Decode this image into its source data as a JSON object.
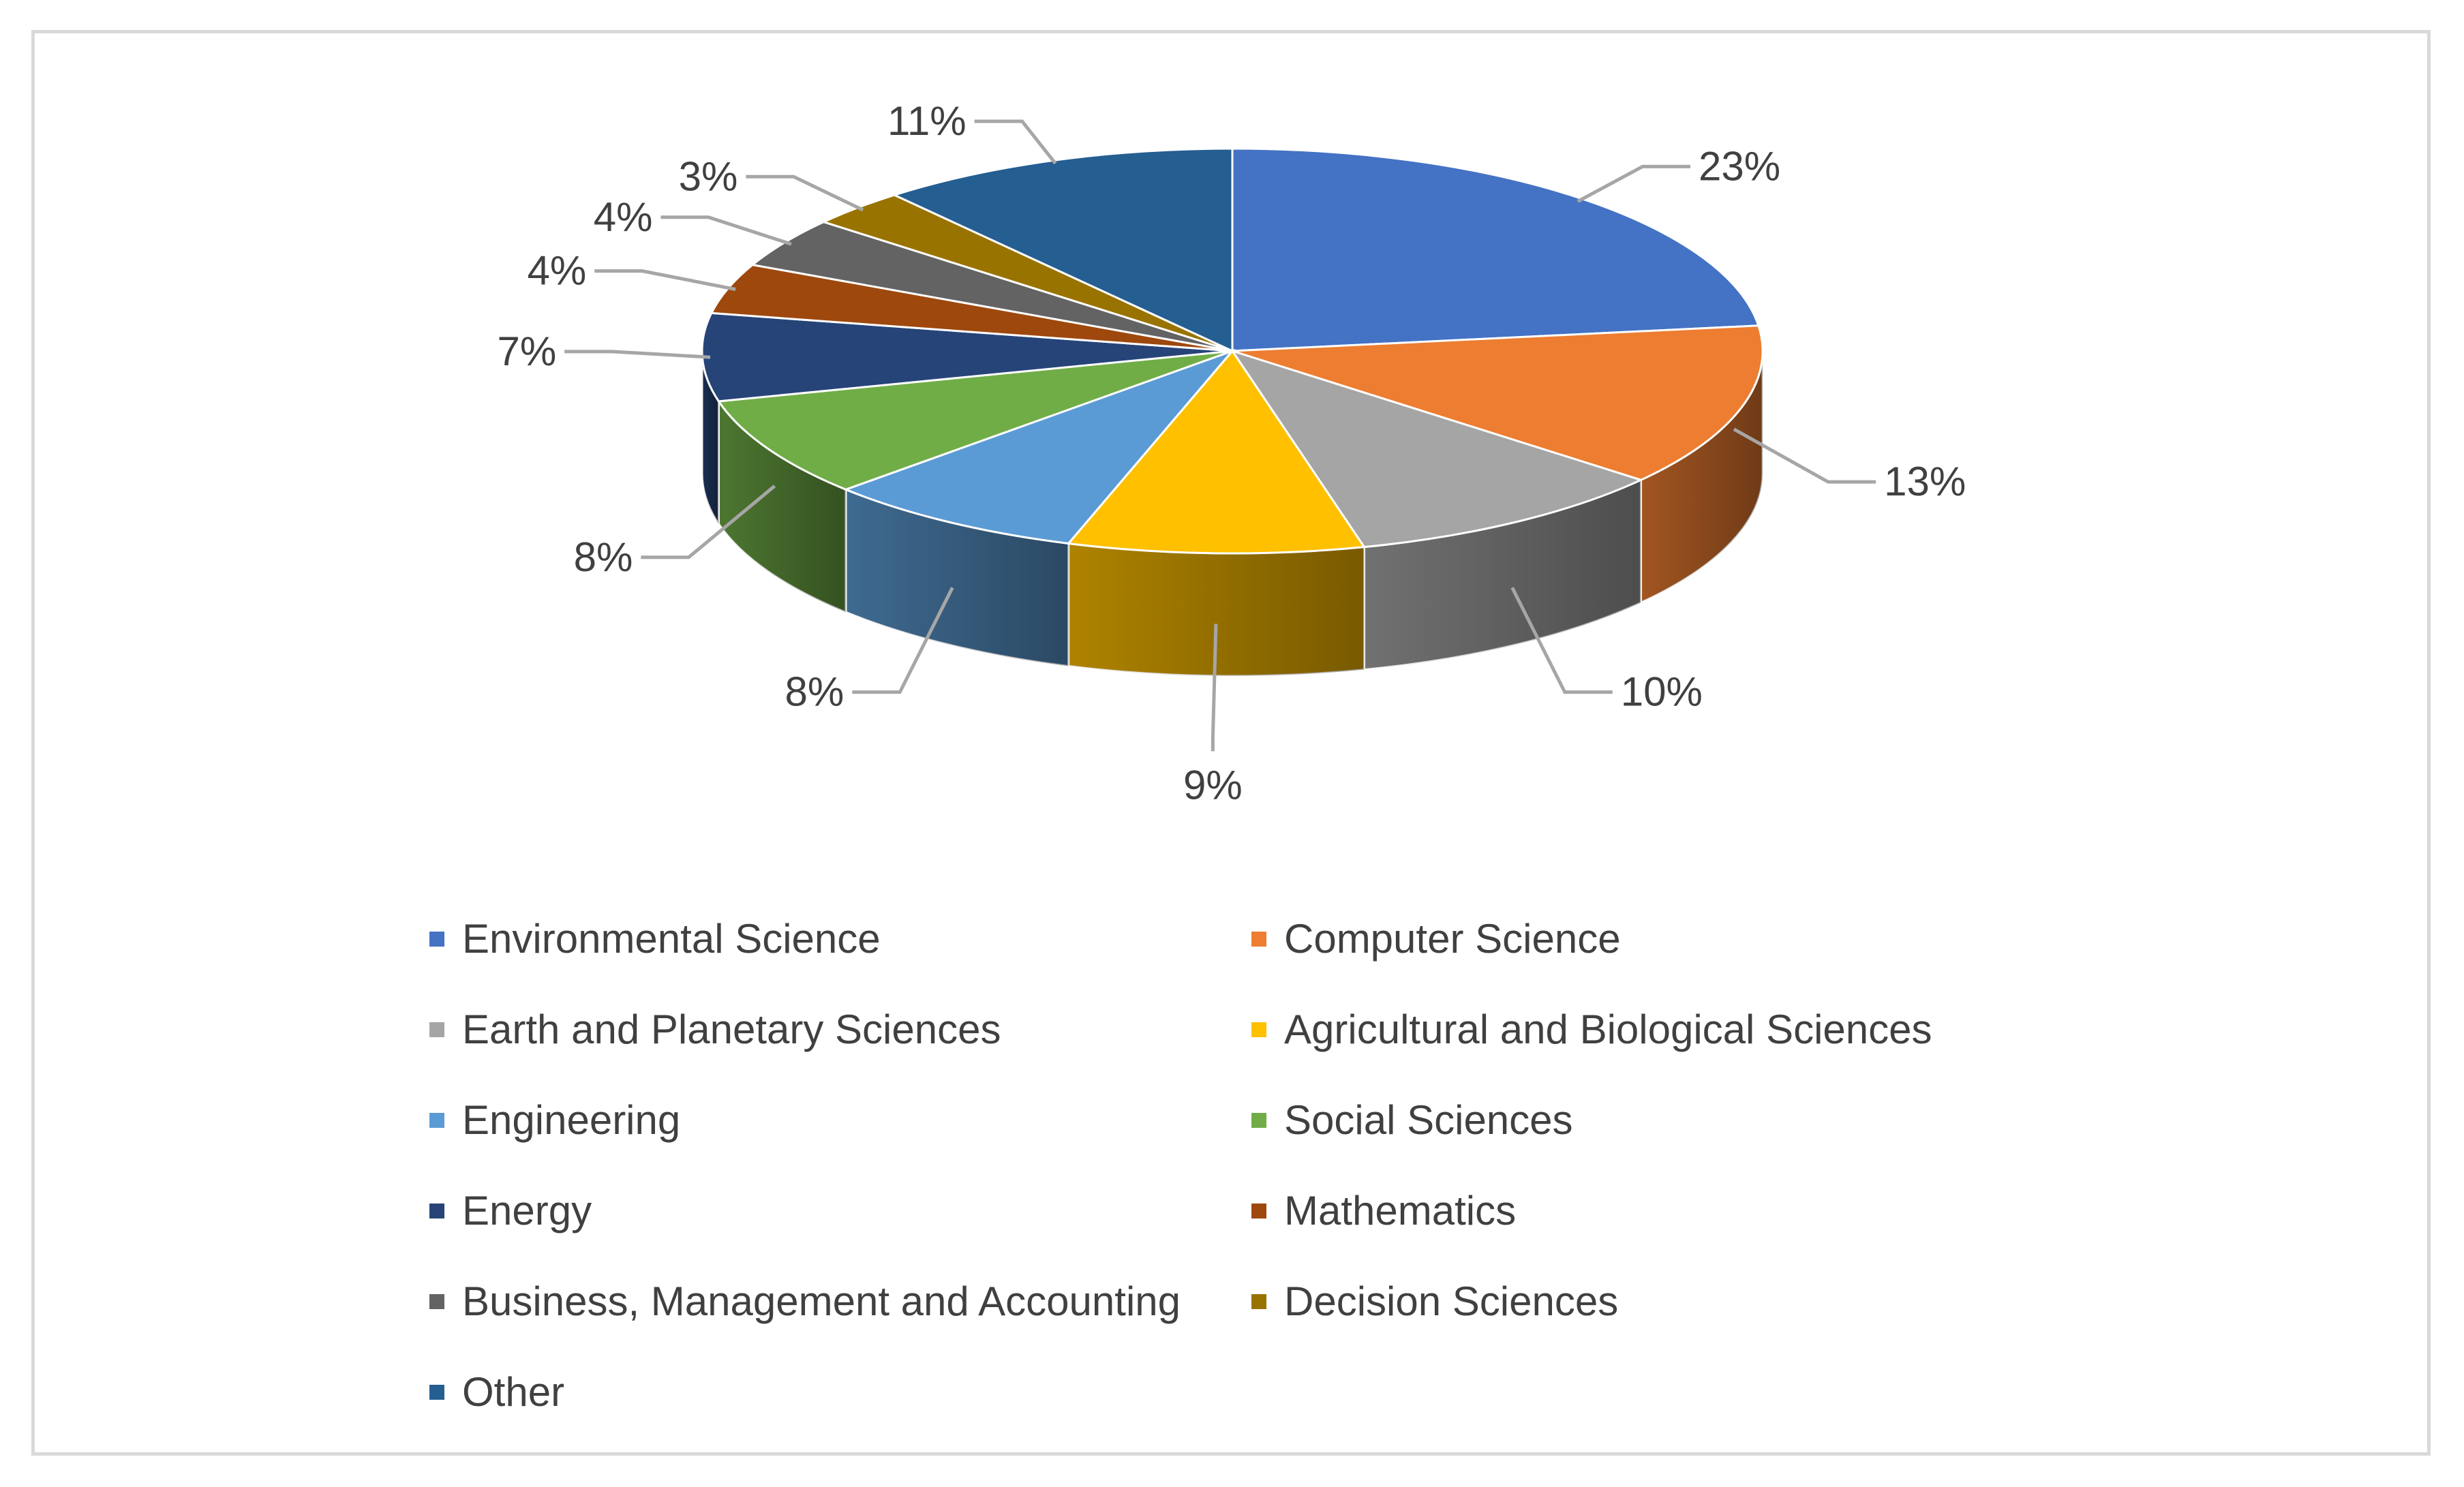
{
  "chart_data": {
    "type": "pie",
    "style": "3d",
    "title": "",
    "legend_position": "bottom",
    "slices": [
      {
        "name": "Environmental Science",
        "value": 23,
        "label": "23%",
        "color": "#4472C4"
      },
      {
        "name": "Computer Science",
        "value": 13,
        "label": "13%",
        "color": "#ED7D31"
      },
      {
        "name": "Earth and Planetary Sciences",
        "value": 10,
        "label": "10%",
        "color": "#A5A5A5"
      },
      {
        "name": "Agricultural and Biological Sciences",
        "value": 9,
        "label": "9%",
        "color": "#FFC000"
      },
      {
        "name": "Engineering",
        "value": 8,
        "label": "8%",
        "color": "#5B9BD5"
      },
      {
        "name": "Social Sciences",
        "value": 8,
        "label": "8%",
        "color": "#70AD47"
      },
      {
        "name": "Energy",
        "value": 7,
        "label": "7%",
        "color": "#264478"
      },
      {
        "name": "Mathematics",
        "value": 4,
        "label": "4%",
        "color": "#9E480E"
      },
      {
        "name": "Business, Management and Accounting",
        "value": 4,
        "label": "4%",
        "color": "#636363"
      },
      {
        "name": "Decision Sciences",
        "value": 3,
        "label": "3%",
        "color": "#997300"
      },
      {
        "name": "Other",
        "value": 11,
        "label": "11%",
        "color": "#255E91"
      }
    ]
  }
}
